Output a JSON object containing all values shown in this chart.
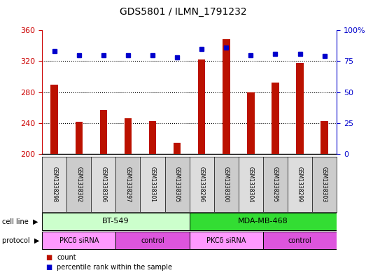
{
  "title": "GDS5801 / ILMN_1791232",
  "samples": [
    "GSM1338298",
    "GSM1338302",
    "GSM1338306",
    "GSM1338297",
    "GSM1338301",
    "GSM1338305",
    "GSM1338296",
    "GSM1338300",
    "GSM1338304",
    "GSM1338295",
    "GSM1338299",
    "GSM1338303"
  ],
  "counts": [
    290,
    242,
    257,
    246,
    243,
    215,
    322,
    348,
    280,
    292,
    318,
    243
  ],
  "percentiles": [
    83,
    80,
    80,
    80,
    80,
    78,
    85,
    86,
    80,
    81,
    81,
    79
  ],
  "ylim_left": [
    200,
    360
  ],
  "ylim_right": [
    0,
    100
  ],
  "yticks_left": [
    200,
    240,
    280,
    320,
    360
  ],
  "yticks_right": [
    0,
    25,
    50,
    75,
    100
  ],
  "bar_color": "#bb1100",
  "dot_color": "#0000cc",
  "cell_line_groups": [
    {
      "label": "BT-549",
      "start": 0,
      "end": 6,
      "color": "#ccffcc"
    },
    {
      "label": "MDA-MB-468",
      "start": 6,
      "end": 12,
      "color": "#33dd33"
    }
  ],
  "protocol_groups": [
    {
      "label": "PKCδ siRNA",
      "start": 0,
      "end": 3,
      "color": "#ff99ff"
    },
    {
      "label": "control",
      "start": 3,
      "end": 6,
      "color": "#dd55dd"
    },
    {
      "label": "PKCδ siRNA",
      "start": 6,
      "end": 9,
      "color": "#ff99ff"
    },
    {
      "label": "control",
      "start": 9,
      "end": 12,
      "color": "#dd55dd"
    }
  ],
  "sample_bg_colors": [
    "#dddddd",
    "#cccccc"
  ],
  "legend_count_color": "#bb1100",
  "legend_dot_color": "#0000cc",
  "axis_label_color_left": "#cc0000",
  "axis_label_color_right": "#0000cc",
  "grid_yticks": [
    240,
    280,
    320
  ]
}
